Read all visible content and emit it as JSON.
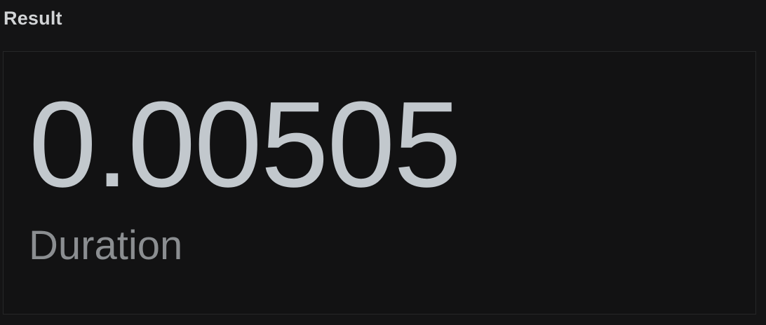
{
  "section": {
    "title": "Result"
  },
  "stat": {
    "value": "0.00505",
    "label": "Duration"
  },
  "colors": {
    "background": "#141415",
    "value_text": "#c2c8cd",
    "label_text": "#8b8e91"
  }
}
